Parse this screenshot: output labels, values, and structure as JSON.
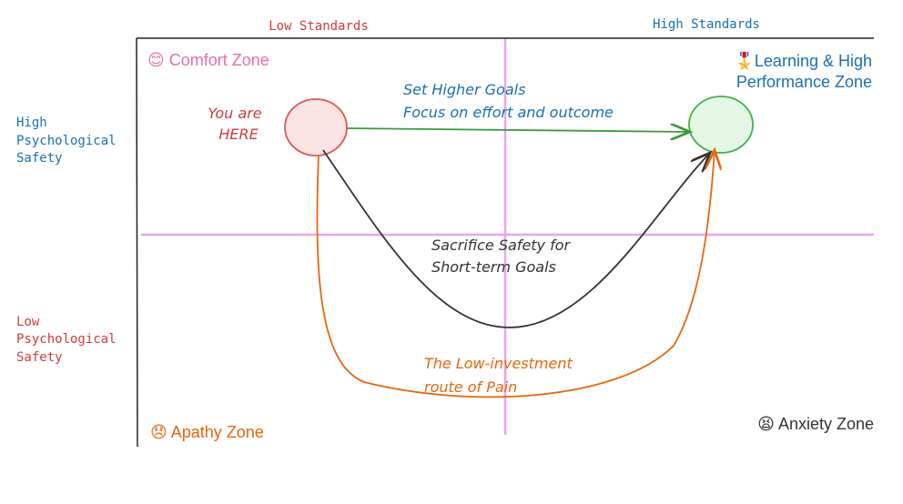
{
  "axes": {
    "x_low": "Low Standards",
    "x_high": "High Standards",
    "y_high": [
      "High",
      "Psychological",
      "Safety"
    ],
    "y_low": [
      "Low",
      "Psychological",
      "Safety"
    ]
  },
  "zones": {
    "comfort": "😊 Comfort Zone",
    "learning": [
      "🎖️Learning & High",
      "Performance Zone"
    ],
    "apathy": "😞 Apathy Zone",
    "anxiety": "😫 Anxiety Zone"
  },
  "start": [
    "You are",
    "HERE"
  ],
  "paths": {
    "higher_goals": [
      "Set Higher Goals",
      "Focus on effort and outcome"
    ],
    "sacrifice": [
      "Sacrifice Safety for",
      "Short-term Goals"
    ],
    "low_investment": [
      "The Low-investment",
      "route of Pain"
    ]
  }
}
